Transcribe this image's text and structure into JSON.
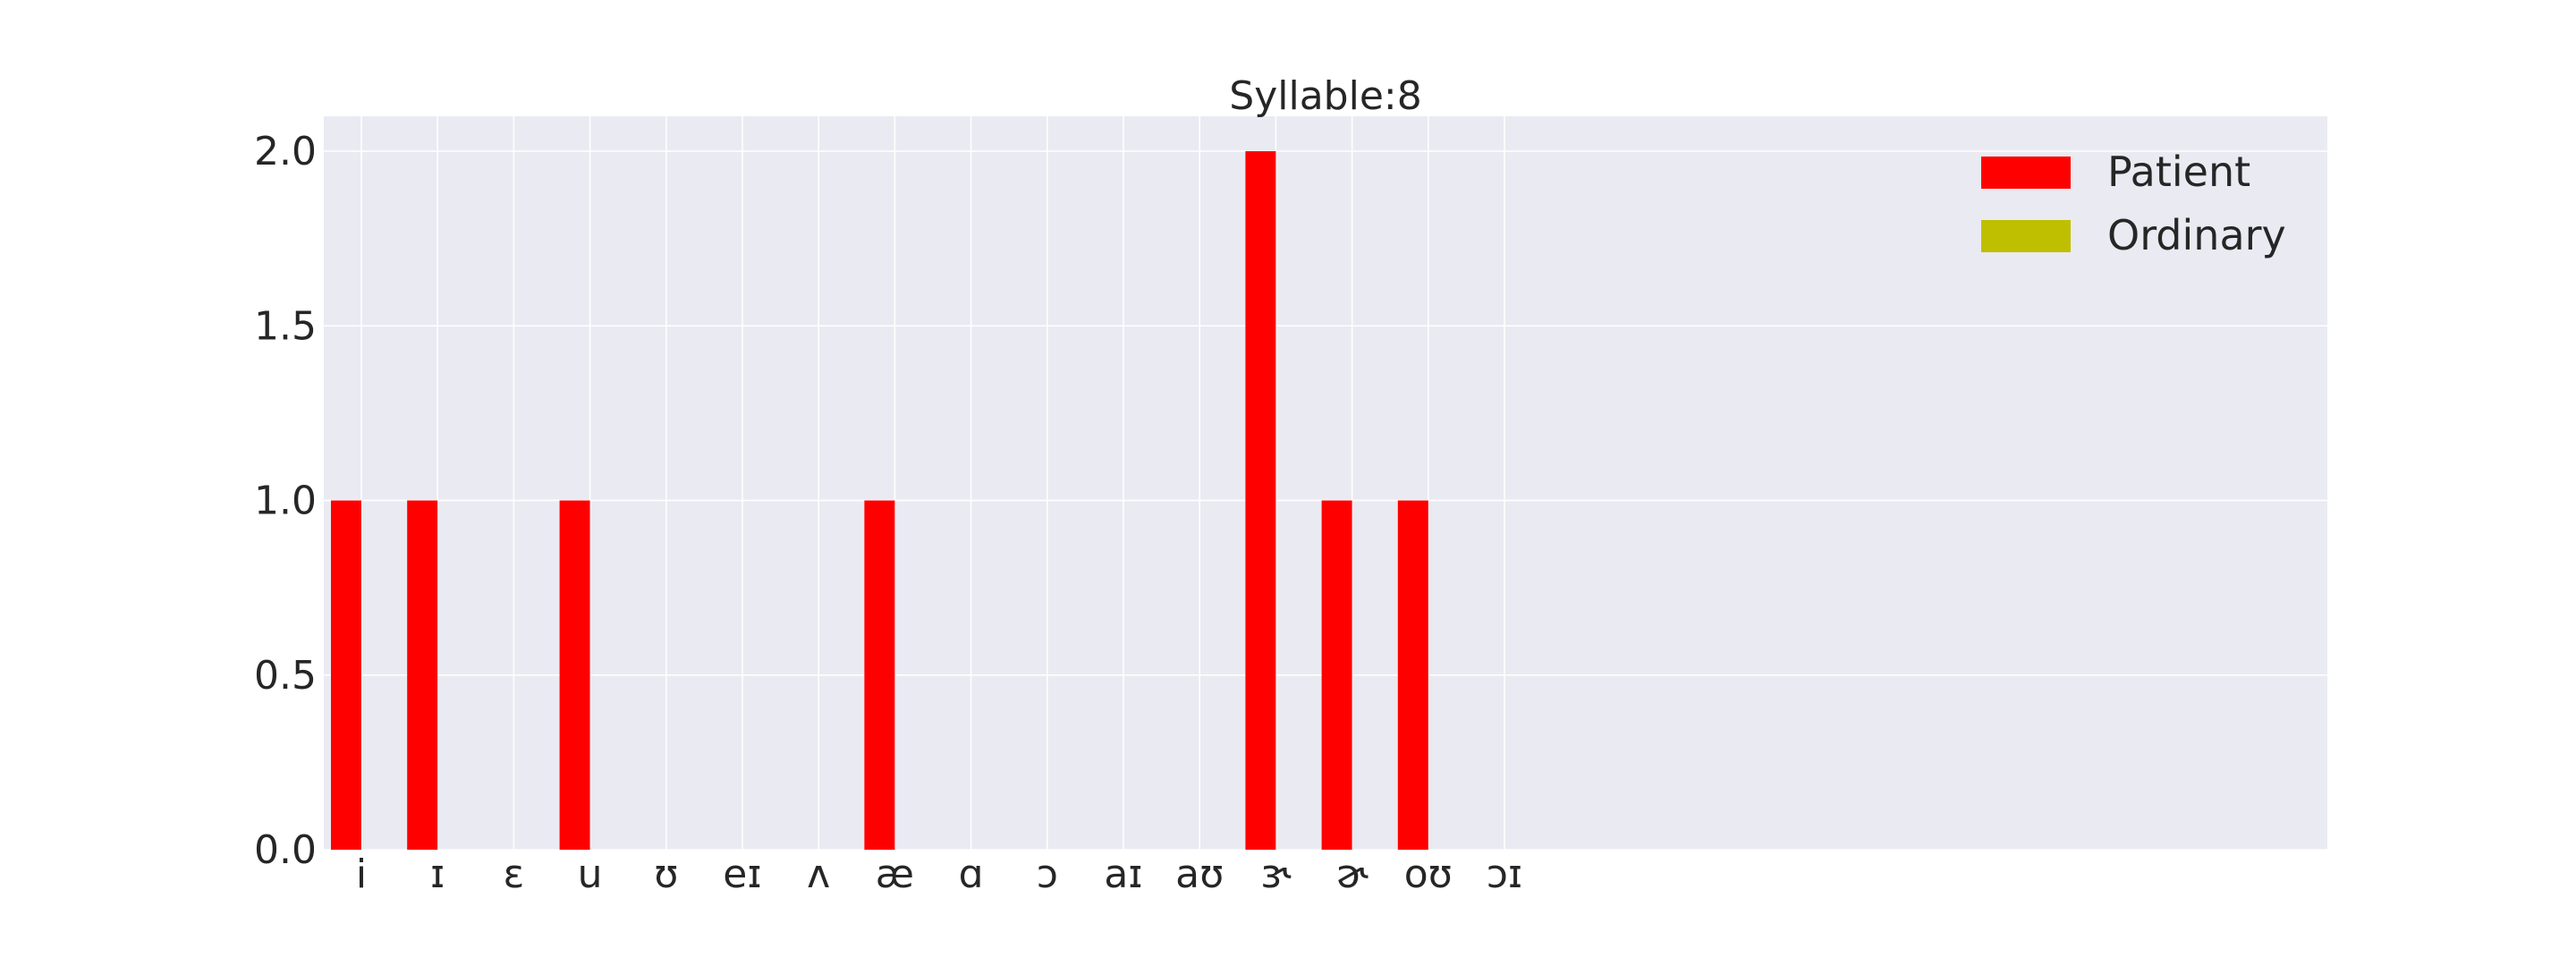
{
  "chart_data": {
    "type": "bar",
    "title": "Syllable:8",
    "xlabel": "",
    "ylabel": "",
    "ylim": [
      0,
      2.1
    ],
    "yticks": [
      "0.0",
      "0.5",
      "1.0",
      "1.5",
      "2.0"
    ],
    "grid": true,
    "legend_position": "top-right",
    "categories": [
      "i",
      "ɪ",
      "ɛ",
      "u",
      "ʊ",
      "eɪ",
      "ʌ",
      "æ",
      "ɑ",
      "ɔ",
      "aɪ",
      "aʊ",
      "ɝ",
      "ɚ",
      "oʊ",
      "ɔɪ"
    ],
    "series": [
      {
        "name": "Patient",
        "color": "#ff0000",
        "values": [
          1,
          1,
          0,
          1,
          0,
          0,
          0,
          1,
          0,
          0,
          0,
          0,
          2,
          1,
          1,
          0
        ]
      },
      {
        "name": "Ordinary",
        "color": "#bfbf00",
        "values": [
          0,
          0,
          0,
          0,
          0,
          0,
          0,
          0,
          0,
          0,
          0,
          0,
          0,
          0,
          0,
          0
        ]
      }
    ]
  }
}
